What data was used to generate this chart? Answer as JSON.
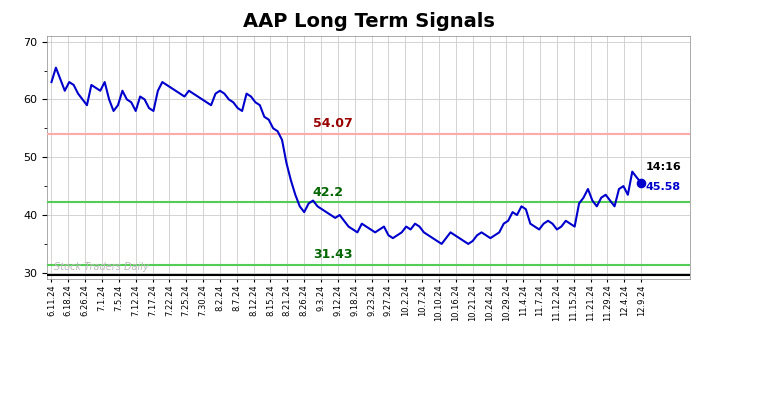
{
  "title": "AAP Long Term Signals",
  "title_fontsize": 14,
  "background_color": "#ffffff",
  "line_color": "#0000cc",
  "line_width": 1.5,
  "ylim": [
    29,
    71
  ],
  "yticks": [
    30,
    40,
    50,
    60,
    70
  ],
  "hline_red": 54.07,
  "hline_green_mid": 42.2,
  "hline_green_low": 31.43,
  "hline_red_color": "#ffaaaa",
  "hline_green_mid_color": "#55cc55",
  "hline_green_low_color": "#55cc55",
  "label_red_text": "54.07",
  "label_red_color": "#990000",
  "label_mid_text": "42.2",
  "label_mid_color": "#006600",
  "label_low_text": "31.43",
  "label_low_color": "#006600",
  "watermark": "Stock Traders Daily",
  "watermark_color": "#bbbbbb",
  "last_price_label": "14:16",
  "last_price_value": "45.58",
  "last_price_dot_color": "#0000cc",
  "xtick_labels": [
    "6.11.24",
    "6.18.24",
    "6.26.24",
    "7.1.24",
    "7.5.24",
    "7.12.24",
    "7.17.24",
    "7.22.24",
    "7.25.24",
    "7.30.24",
    "8.2.24",
    "8.7.24",
    "8.12.24",
    "8.15.24",
    "8.21.24",
    "8.26.24",
    "9.3.24",
    "9.12.24",
    "9.18.24",
    "9.23.24",
    "9.27.24",
    "10.2.24",
    "10.7.24",
    "10.10.24",
    "10.16.24",
    "10.21.24",
    "10.24.24",
    "10.29.24",
    "11.4.24",
    "11.7.24",
    "11.12.24",
    "11.15.24",
    "11.21.24",
    "11.29.24",
    "12.4.24",
    "12.9.24"
  ],
  "prices": [
    63.0,
    65.5,
    63.5,
    61.5,
    63.0,
    62.5,
    61.0,
    60.0,
    59.0,
    62.5,
    62.0,
    61.5,
    63.0,
    60.0,
    58.0,
    59.0,
    61.5,
    60.0,
    59.5,
    58.0,
    60.5,
    60.0,
    58.5,
    58.0,
    61.5,
    63.0,
    62.5,
    62.0,
    61.5,
    61.0,
    60.5,
    61.5,
    61.0,
    60.5,
    60.0,
    59.5,
    59.0,
    61.0,
    61.5,
    61.0,
    60.0,
    59.5,
    58.5,
    58.0,
    61.0,
    60.5,
    59.5,
    59.0,
    57.0,
    56.5,
    55.0,
    54.5,
    53.0,
    49.0,
    46.0,
    43.5,
    41.5,
    40.5,
    42.0,
    42.5,
    41.5,
    41.0,
    40.5,
    40.0,
    39.5,
    40.0,
    39.0,
    38.0,
    37.5,
    37.0,
    38.5,
    38.0,
    37.5,
    37.0,
    37.5,
    38.0,
    36.5,
    36.0,
    36.5,
    37.0,
    38.0,
    37.5,
    38.5,
    38.0,
    37.0,
    36.5,
    36.0,
    35.5,
    35.0,
    36.0,
    37.0,
    36.5,
    36.0,
    35.5,
    35.0,
    35.5,
    36.5,
    37.0,
    36.5,
    36.0,
    36.5,
    37.0,
    38.5,
    39.0,
    40.5,
    40.0,
    41.5,
    41.0,
    38.5,
    38.0,
    37.5,
    38.5,
    39.0,
    38.5,
    37.5,
    38.0,
    39.0,
    38.5,
    38.0,
    42.0,
    43.0,
    44.5,
    42.5,
    41.5,
    43.0,
    43.5,
    42.5,
    41.5,
    44.5,
    45.0,
    43.5,
    47.5,
    46.5,
    45.58
  ]
}
